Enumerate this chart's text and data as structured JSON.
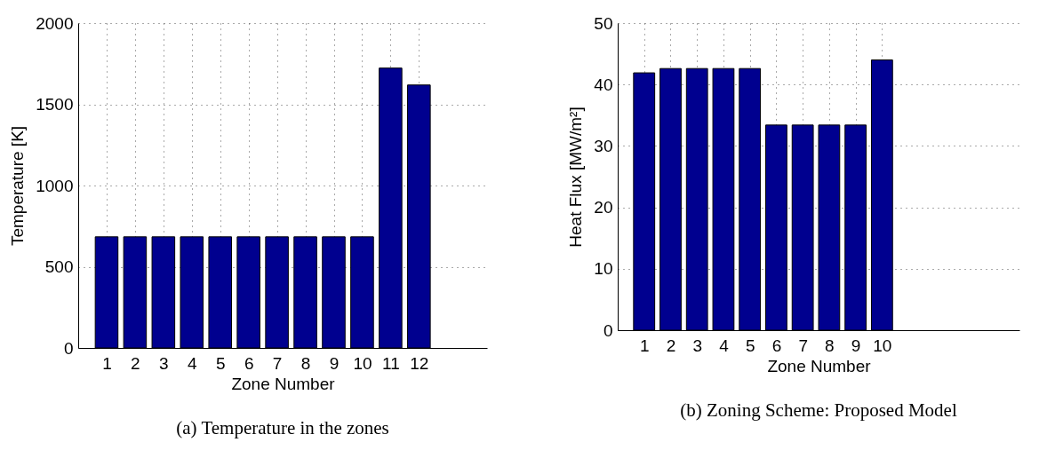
{
  "chart_data": [
    {
      "type": "bar",
      "title": "(a) Temperature in the zones",
      "xlabel": "Zone Number",
      "ylabel": "Temperature [K]",
      "x": [
        1,
        2,
        3,
        4,
        5,
        6,
        7,
        8,
        9,
        10,
        11,
        12
      ],
      "values": [
        684,
        684,
        684,
        684,
        684,
        684,
        684,
        684,
        684,
        684,
        1723,
        1619
      ],
      "color": "#00008f",
      "xlim": [
        0,
        14.4
      ],
      "xticks": [
        1,
        2,
        3,
        4,
        5,
        6,
        7,
        8,
        9,
        10,
        11,
        12
      ],
      "ylim": [
        0,
        2000
      ],
      "yticks": [
        0,
        500,
        1000,
        1500,
        2000
      ],
      "grid": true
    },
    {
      "type": "bar",
      "title": "(b) Zoning Scheme: Proposed Model",
      "xlabel": "Zone Number",
      "ylabel": "Heat Flux [MW/m²]",
      "x": [
        1,
        2,
        3,
        4,
        5,
        6,
        7,
        8,
        9,
        10
      ],
      "values": [
        41.9,
        42.6,
        42.6,
        42.6,
        42.6,
        33.4,
        33.4,
        33.4,
        33.4,
        44.0
      ],
      "color": "#00008f",
      "xlim": [
        0,
        15.2
      ],
      "xticks": [
        1,
        2,
        3,
        4,
        5,
        6,
        7,
        8,
        9,
        10
      ],
      "ylim": [
        0,
        50
      ],
      "yticks": [
        0,
        10,
        20,
        30,
        40,
        50
      ],
      "grid": true
    }
  ]
}
